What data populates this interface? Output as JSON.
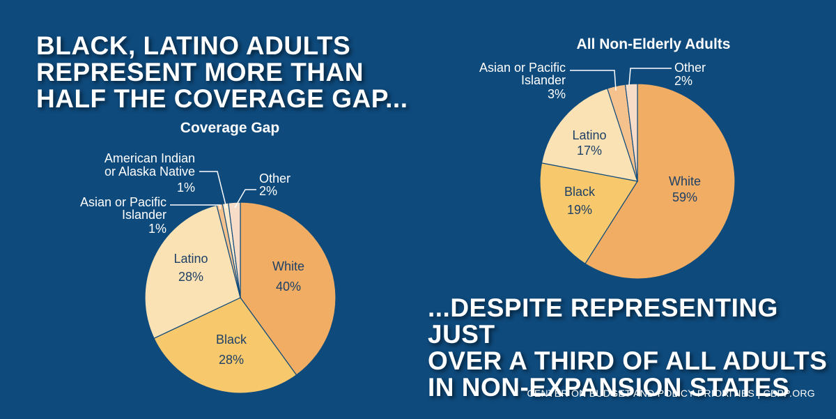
{
  "headline_left": "Black, Latino Adults\nRepresent More Than\nHalf the Coverage Gap...",
  "headline_right": "...Despite Representing Just\nOver a Third of All Adults\nin Non-Expansion States",
  "footer": "CENTER ON BUDGET AND POLICY PRIORITIES | CBPP.ORG",
  "colors": {
    "background": "#0e4a7c",
    "white_slice": "#f0ad63",
    "black_slice": "#f8c96c",
    "latino_slice": "#fae2b4",
    "asian_slice": "#f5c28e",
    "american_indian_slice": "#fbe9cc",
    "other_slice": "#f7dcc8",
    "inner_text": "#1e3f66",
    "outer_text": "#ffffff"
  },
  "chart_data": [
    {
      "type": "pie",
      "title": "Coverage Gap",
      "slices": [
        {
          "name": "White",
          "value": 40,
          "label": "40%"
        },
        {
          "name": "Black",
          "value": 28,
          "label": "28%"
        },
        {
          "name": "Latino",
          "value": 28,
          "label": "28%"
        },
        {
          "name": "Asian or Pacific Islander",
          "value": 1,
          "label": "1%"
        },
        {
          "name": "American Indian or Alaska Native",
          "value": 1,
          "label": "1%"
        },
        {
          "name": "Other",
          "value": 2,
          "label": "2%"
        }
      ]
    },
    {
      "type": "pie",
      "title": "All Non-Elderly Adults",
      "slices": [
        {
          "name": "White",
          "value": 59,
          "label": "59%"
        },
        {
          "name": "Black",
          "value": 19,
          "label": "19%"
        },
        {
          "name": "Latino",
          "value": 17,
          "label": "17%"
        },
        {
          "name": "Asian or Pacific Islander",
          "value": 3,
          "label": "3%"
        },
        {
          "name": "Other",
          "value": 2,
          "label": "2%"
        }
      ]
    }
  ]
}
